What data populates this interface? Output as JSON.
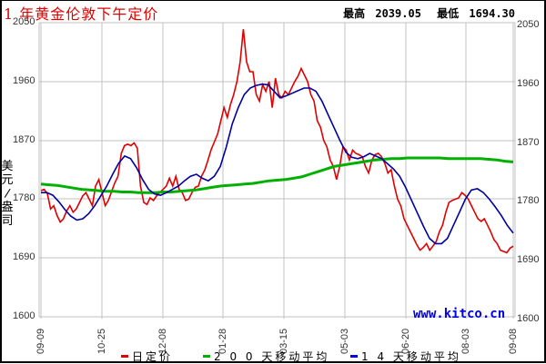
{
  "title": "1 年黄金伦敦下午定价",
  "stats": {
    "high_label": "最高",
    "high_value": "2039.05",
    "low_label": "最低",
    "low_value": "1694.30"
  },
  "unit_label": "美元/盎司",
  "watermark": "www.kitco.cn",
  "legend": [
    {
      "label": "日定价",
      "color": "#e00000"
    },
    {
      "label": "2 0 0 天移动平均",
      "color": "#00b000"
    },
    {
      "label": "1 4 天移动平均",
      "color": "#0000a0"
    }
  ],
  "chart_data": {
    "type": "line",
    "title": "1 年黄金伦敦下午定价",
    "xlabel": "",
    "ylabel": "美元/盎司",
    "ylim": [
      1600,
      2050
    ],
    "yticks": [
      1600,
      1690,
      1780,
      1870,
      1960,
      2050
    ],
    "xticks": [
      "09-09",
      "10-25",
      "12-08",
      "01-28",
      "03-15",
      "05-03",
      "06-20",
      "08-03",
      "09-08"
    ],
    "grid": true,
    "legend_position": "bottom",
    "high": 2039.05,
    "low": 1694.3,
    "series": [
      {
        "name": "日定价",
        "color": "#e00000",
        "values": [
          1793,
          1795,
          1788,
          1765,
          1770,
          1755,
          1745,
          1750,
          1762,
          1770,
          1760,
          1765,
          1775,
          1785,
          1790,
          1780,
          1770,
          1800,
          1810,
          1790,
          1770,
          1778,
          1792,
          1805,
          1815,
          1850,
          1862,
          1864,
          1862,
          1866,
          1858,
          1800,
          1775,
          1772,
          1782,
          1778,
          1785,
          1790,
          1795,
          1800,
          1812,
          1800,
          1815,
          1795,
          1790,
          1778,
          1780,
          1790,
          1798,
          1800,
          1815,
          1825,
          1840,
          1856,
          1868,
          1880,
          1900,
          1920,
          1905,
          1925,
          1940,
          1960,
          1990,
          2040,
          1990,
          1975,
          1975,
          1940,
          1930,
          1955,
          1945,
          1960,
          1920,
          1965,
          1940,
          1935,
          1945,
          1940,
          1950,
          1960,
          1968,
          1980,
          1970,
          1960,
          1940,
          1930,
          1900,
          1890,
          1870,
          1860,
          1840,
          1830,
          1810,
          1830,
          1860,
          1855,
          1840,
          1855,
          1850,
          1848,
          1845,
          1830,
          1820,
          1840,
          1848,
          1850,
          1845,
          1835,
          1820,
          1825,
          1800,
          1780,
          1770,
          1750,
          1740,
          1730,
          1720,
          1710,
          1702,
          1706,
          1712,
          1702,
          1708,
          1715,
          1730,
          1740,
          1760,
          1775,
          1778,
          1780,
          1782,
          1790,
          1786,
          1780,
          1770,
          1760,
          1750,
          1746,
          1750,
          1740,
          1730,
          1718,
          1712,
          1702,
          1700,
          1698,
          1705,
          1708
        ]
      },
      {
        "name": "200 天移动平均",
        "color": "#00b000",
        "values": [
          1803,
          1802,
          1801,
          1799,
          1797,
          1795,
          1794,
          1793,
          1792,
          1792,
          1791,
          1791,
          1790,
          1790,
          1790,
          1791,
          1791,
          1792,
          1793,
          1794,
          1796,
          1798,
          1800,
          1801,
          1802,
          1803,
          1804,
          1806,
          1808,
          1809,
          1810,
          1812,
          1814,
          1818,
          1822,
          1826,
          1830,
          1832,
          1834,
          1836,
          1838,
          1840,
          1841,
          1842,
          1842,
          1843,
          1843,
          1843,
          1843,
          1843,
          1842,
          1842,
          1842,
          1842,
          1842,
          1841,
          1840,
          1838,
          1837
        ]
      },
      {
        "name": "14 天移动平均",
        "color": "#0000a0",
        "values": [
          1790,
          1790,
          1786,
          1776,
          1764,
          1754,
          1748,
          1750,
          1758,
          1770,
          1785,
          1800,
          1818,
          1835,
          1846,
          1842,
          1828,
          1810,
          1795,
          1788,
          1786,
          1790,
          1795,
          1800,
          1808,
          1815,
          1818,
          1812,
          1808,
          1815,
          1830,
          1860,
          1895,
          1920,
          1940,
          1950,
          1954,
          1956,
          1955,
          1945,
          1935,
          1938,
          1942,
          1946,
          1950,
          1950,
          1945,
          1930,
          1910,
          1890,
          1870,
          1852,
          1844,
          1842,
          1845,
          1850,
          1846,
          1842,
          1834,
          1826,
          1815,
          1798,
          1778,
          1758,
          1738,
          1720,
          1712,
          1712,
          1720,
          1740,
          1760,
          1780,
          1794,
          1796,
          1790,
          1780,
          1768,
          1755,
          1740,
          1728
        ]
      }
    ]
  }
}
